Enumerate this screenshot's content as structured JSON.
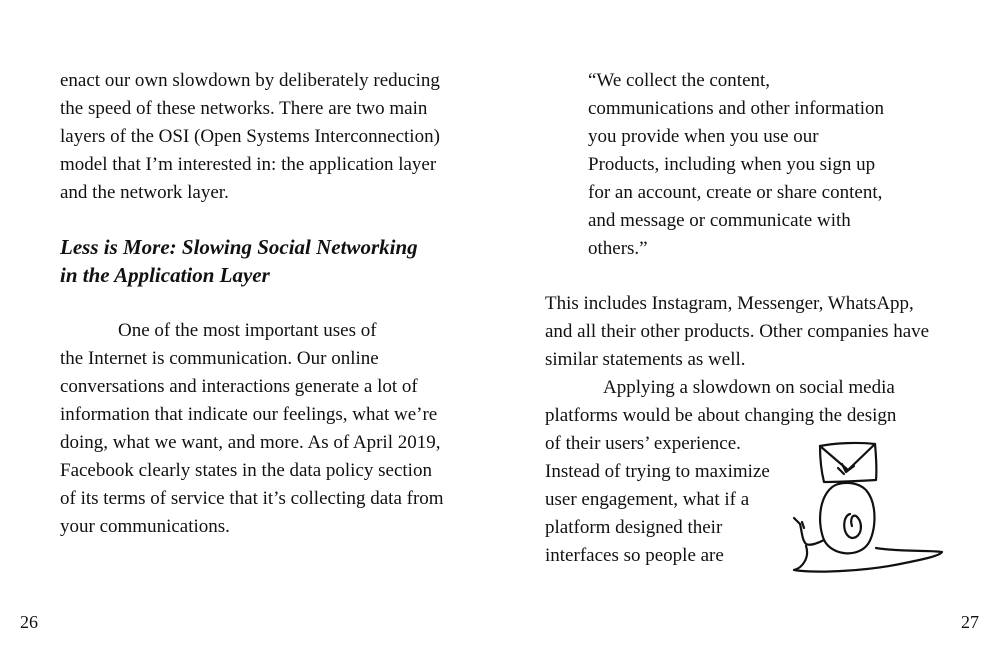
{
  "left_page": {
    "para_intro": [
      "enact our own slowdown by deliberately reducing",
      "the speed of these networks. There are two main",
      "layers of the OSI (Open Systems Interconnection)",
      "model that I’m interested in: the application layer",
      "and the network layer."
    ],
    "heading": [
      "Less is More: Slowing Social Networking",
      "in the Application Layer"
    ],
    "para_body": [
      "One of the most important uses of",
      "the Internet is communication. Our online",
      "conversations and interactions generate a lot of",
      "information that indicate our feelings, what we’re",
      "doing, what we want, and more. As of April 2019,",
      "Facebook clearly states in the data policy section",
      "of its terms of service that it’s collecting data from",
      "your communications."
    ],
    "page_number": "26"
  },
  "right_page": {
    "quote": [
      "“We collect the content,",
      "communications and other information",
      "you provide when you use our",
      "Products, including when you sign up",
      "for an account, create or share content,",
      "and message or communicate with",
      "others.”"
    ],
    "para_includes": [
      "This includes Instagram, Messenger, WhatsApp,",
      "and all their other products. Other companies have",
      "similar statements as well."
    ],
    "para_slowdown": [
      "Applying a slowdown on social media",
      "platforms would be about changing the design",
      "of their users’ experience.",
      "Instead of trying to maximize",
      "user engagement, what if a",
      "platform designed their",
      "interfaces so people are"
    ],
    "illustration": "snail-carrying-envelope-drawing",
    "page_number": "27"
  }
}
